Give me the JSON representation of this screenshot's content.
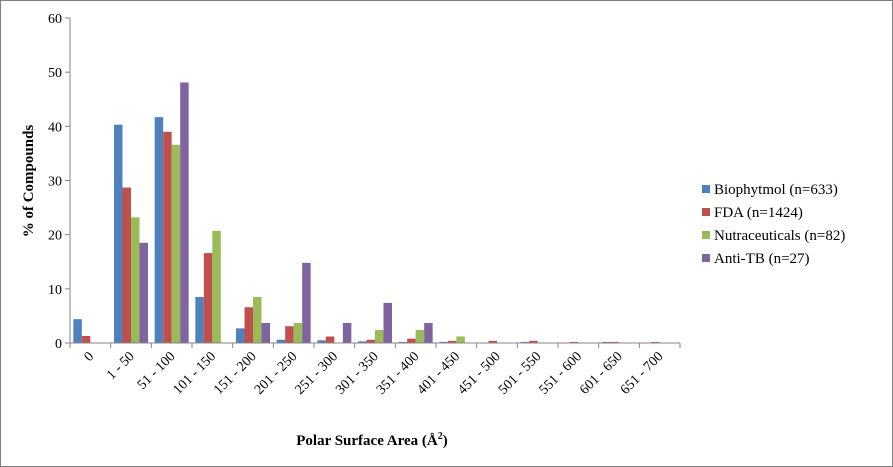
{
  "chart_data": {
    "type": "bar",
    "title": "",
    "xlabel": "Polar Surface Area (Å",
    "xlabel_sup": "2",
    "xlabel_end": ")",
    "ylabel": "% of Compounds",
    "ylim": [
      0,
      60
    ],
    "yticks": [
      0,
      10,
      20,
      30,
      40,
      50,
      60
    ],
    "legend_position": "right",
    "grid": false,
    "categories": [
      "0",
      "1 - 50",
      "51 - 100",
      "101 - 150",
      "151 - 200",
      "201 - 250",
      "251 - 300",
      "301 - 350",
      "351 - 400",
      "401 - 450",
      "451 - 500",
      "501 - 550",
      "551 - 600",
      "601 - 650",
      "651 - 700"
    ],
    "series": [
      {
        "name": "Biophytmol (n=633)",
        "color": "#4f81bd",
        "values": [
          4.4,
          40.3,
          41.7,
          8.5,
          2.7,
          0.6,
          0.5,
          0.3,
          0.2,
          0.2,
          0,
          0.2,
          0,
          0.2,
          0
        ]
      },
      {
        "name": "FDA (n=1424)",
        "color": "#c0504d",
        "values": [
          1.3,
          28.7,
          39.0,
          16.6,
          6.6,
          3.1,
          1.2,
          0.6,
          0.8,
          0.4,
          0.4,
          0.4,
          0.2,
          0.2,
          0.2
        ]
      },
      {
        "name": "Nutraceuticals (n=82)",
        "color": "#9bbb59",
        "values": [
          0,
          23.2,
          36.6,
          20.7,
          8.5,
          3.7,
          0,
          2.4,
          2.4,
          1.2,
          0,
          0,
          0,
          0,
          0
        ]
      },
      {
        "name": "Anti-TB (n=27)",
        "color": "#8064a2",
        "values": [
          0,
          18.5,
          48.1,
          0,
          3.7,
          14.8,
          3.7,
          7.4,
          3.7,
          0,
          0,
          0,
          0,
          0,
          0
        ]
      }
    ]
  }
}
